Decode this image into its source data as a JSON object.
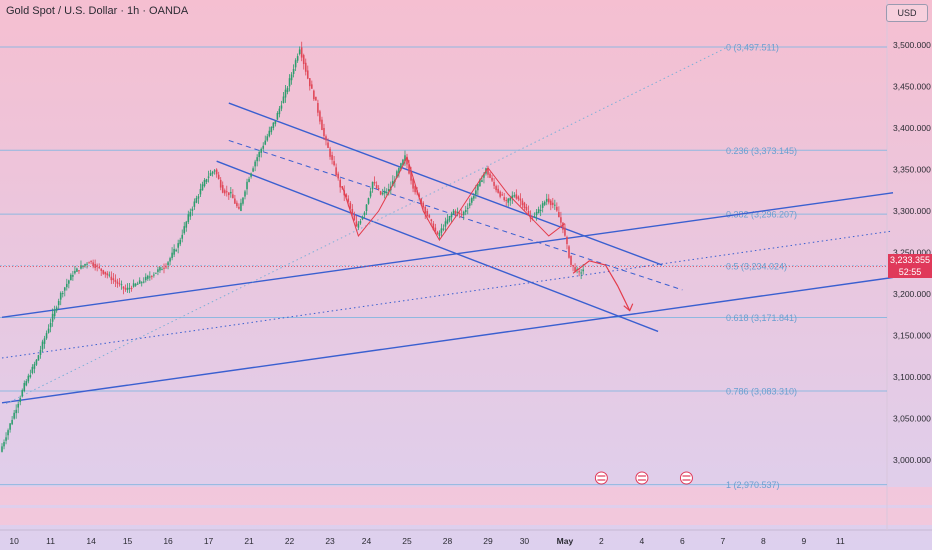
{
  "header": {
    "title": "Gold Spot / U.S. Dollar · 1h · OANDA",
    "currency": "USD"
  },
  "price_tag": {
    "price": "3,233.355",
    "timer": "52:55"
  },
  "colors": {
    "bg_top": "#f5bfd1",
    "bg_bottom": "#ddd0ee",
    "channel": "#3a5fd0",
    "fib": "#8fb8e0",
    "fib_text": "#6a9fd0",
    "projection": "#e33c4c",
    "up_candle": "#2e9d6e",
    "down_candle": "#e04858"
  },
  "chart_data": {
    "type": "candlestick",
    "title": "Gold Spot / U.S. Dollar · 1h · OANDA",
    "y_unit": "USD",
    "ylim": [
      2940,
      3530
    ],
    "y_ticks": [
      {
        "value": 3500,
        "label": "3,500.000"
      },
      {
        "value": 3450,
        "label": "3,450.000"
      },
      {
        "value": 3400,
        "label": "3,400.000"
      },
      {
        "value": 3350,
        "label": "3,350.000"
      },
      {
        "value": 3300,
        "label": "3,300.000"
      },
      {
        "value": 3250,
        "label": "3,250.000"
      },
      {
        "value": 3200,
        "label": "3,200.000"
      },
      {
        "value": 3150,
        "label": "3,150.000"
      },
      {
        "value": 3100,
        "label": "3,100.000"
      },
      {
        "value": 3050,
        "label": "3,050.000"
      },
      {
        "value": 3000,
        "label": "3,000.000"
      }
    ],
    "x_ticks": [
      "10",
      "11",
      "14",
      "15",
      "16",
      "17",
      "21",
      "22",
      "23",
      "24",
      "25",
      "28",
      "29",
      "30",
      "May",
      "2",
      "4",
      "6",
      "7",
      "8",
      "9",
      "11"
    ],
    "x_tick_slots": [
      3,
      12,
      22,
      31,
      41,
      51,
      61,
      71,
      81,
      90,
      100,
      110,
      120,
      129,
      139,
      148,
      158,
      168,
      178,
      188,
      198,
      207
    ],
    "last_price": 3233.355,
    "fib_levels": [
      {
        "ratio": "0",
        "value": 3497.511,
        "label": "0 (3,497.511)"
      },
      {
        "ratio": "0.236",
        "value": 3373.145,
        "label": "0.236 (3,373.145)"
      },
      {
        "ratio": "0.382",
        "value": 3296.207,
        "label": "0.382 (3,296.207)"
      },
      {
        "ratio": "0.5",
        "value": 3234.024,
        "label": "0.5 (3,234.024)"
      },
      {
        "ratio": "0.618",
        "value": 3171.841,
        "label": "0.618 (3,171.841)"
      },
      {
        "ratio": "0.786",
        "value": 3083.31,
        "label": "0.786 (3,083.310)"
      },
      {
        "ratio": "1",
        "value": 2970.537,
        "label": "1 (2,970.537)"
      }
    ],
    "price_path": [
      [
        0,
        3010
      ],
      [
        3,
        3050
      ],
      [
        6,
        3090
      ],
      [
        9,
        3120
      ],
      [
        12,
        3160
      ],
      [
        15,
        3200
      ],
      [
        18,
        3225
      ],
      [
        22,
        3240
      ],
      [
        26,
        3225
      ],
      [
        31,
        3205
      ],
      [
        35,
        3215
      ],
      [
        38,
        3225
      ],
      [
        41,
        3235
      ],
      [
        44,
        3260
      ],
      [
        47,
        3300
      ],
      [
        51,
        3340
      ],
      [
        53,
        3350
      ],
      [
        55,
        3325
      ],
      [
        57,
        3320
      ],
      [
        59,
        3300
      ],
      [
        61,
        3335
      ],
      [
        63,
        3360
      ],
      [
        65,
        3380
      ],
      [
        68,
        3410
      ],
      [
        71,
        3450
      ],
      [
        72,
        3465
      ],
      [
        74,
        3497
      ],
      [
        76,
        3460
      ],
      [
        78,
        3430
      ],
      [
        80,
        3390
      ],
      [
        82,
        3360
      ],
      [
        84,
        3330
      ],
      [
        86,
        3310
      ],
      [
        88,
        3280
      ],
      [
        90,
        3300
      ],
      [
        92,
        3335
      ],
      [
        94,
        3320
      ],
      [
        96,
        3325
      ],
      [
        98,
        3345
      ],
      [
        100,
        3365
      ],
      [
        102,
        3330
      ],
      [
        104,
        3310
      ],
      [
        106,
        3290
      ],
      [
        108,
        3270
      ],
      [
        110,
        3285
      ],
      [
        112,
        3300
      ],
      [
        114,
        3295
      ],
      [
        116,
        3310
      ],
      [
        118,
        3330
      ],
      [
        120,
        3350
      ],
      [
        122,
        3330
      ],
      [
        125,
        3310
      ],
      [
        127,
        3320
      ],
      [
        129,
        3310
      ],
      [
        131,
        3290
      ],
      [
        133,
        3300
      ],
      [
        135,
        3315
      ],
      [
        137,
        3305
      ],
      [
        139,
        3280
      ],
      [
        141,
        3235
      ],
      [
        143,
        3225
      ],
      [
        144,
        3230
      ]
    ],
    "projection": [
      [
        141,
        3225
      ],
      [
        145,
        3240
      ],
      [
        149,
        3235
      ],
      [
        152,
        3210
      ],
      [
        155,
        3180
      ]
    ],
    "channels": [
      {
        "style": "solid",
        "from": [
          0,
          3172
        ],
        "to": [
          220,
          3322
        ]
      },
      {
        "style": "solid",
        "from": [
          0,
          3069
        ],
        "to": [
          220,
          3220
        ]
      },
      {
        "style": "dotted",
        "from": [
          0,
          3123
        ],
        "to": [
          220,
          3276
        ]
      },
      {
        "style": "solid",
        "from": [
          56,
          3430
        ],
        "to": [
          163,
          3235
        ]
      },
      {
        "style": "dashed",
        "from": [
          56,
          3385
        ],
        "to": [
          168,
          3205
        ]
      },
      {
        "style": "solid",
        "from": [
          53,
          3360
        ],
        "to": [
          162,
          3155
        ]
      },
      {
        "style": "dotted",
        "from": [
          1,
          3068
        ],
        "to": [
          179,
          3497
        ]
      }
    ],
    "grid": false,
    "legend": "none"
  }
}
